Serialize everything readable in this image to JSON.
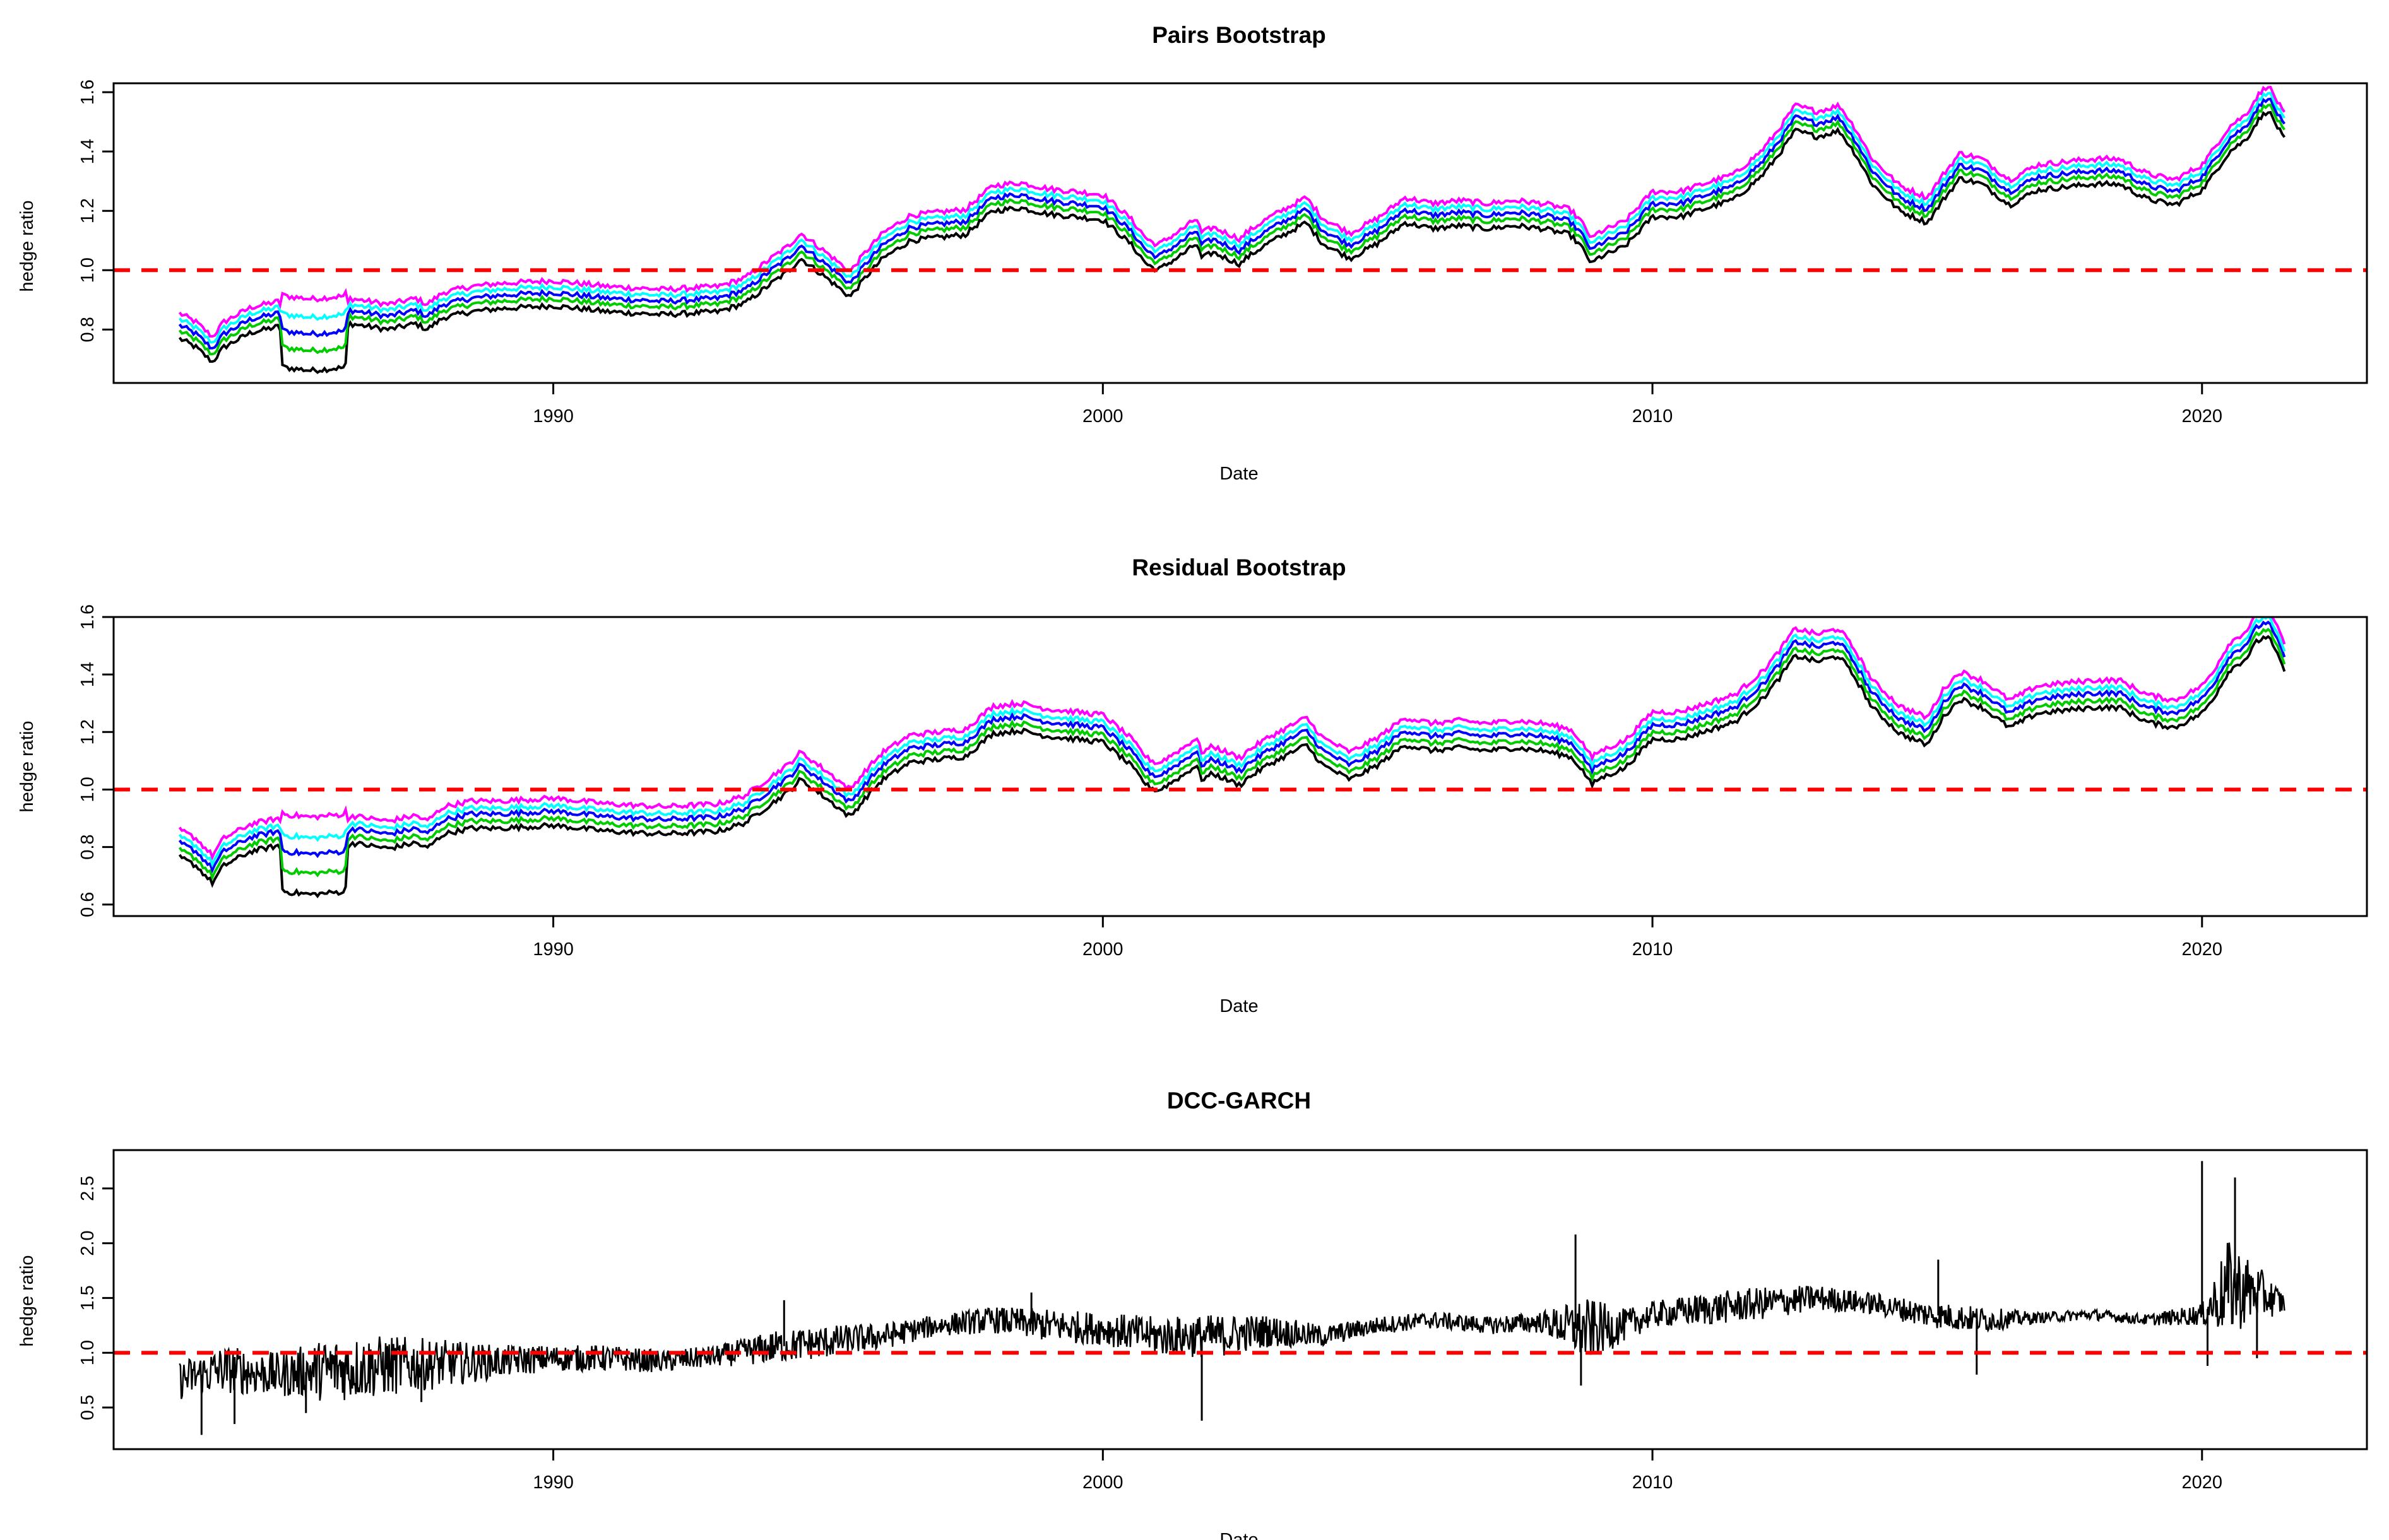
{
  "chart_data": [
    {
      "type": "line",
      "title": "Pairs Bootstrap",
      "xlabel": "Date",
      "ylabel": "hedge ratio",
      "xlim": [
        1982.0,
        2023.0
      ],
      "ylim": [
        0.62,
        1.63
      ],
      "xticks": [
        1990,
        2000,
        2010,
        2020
      ],
      "yticks": [
        0.8,
        1.0,
        1.2,
        1.4,
        1.6
      ],
      "reference_line": {
        "y": 1.0,
        "color": "#ff0000",
        "style": "dashed"
      },
      "series_names": [
        "black",
        "green",
        "blue",
        "cyan",
        "magenta"
      ],
      "series_colors": [
        "#000000",
        "#00cc00",
        "#0000ff",
        "#00ffff",
        "#ff00ff"
      ],
      "series_offsets": [
        -0.06,
        -0.035,
        -0.015,
        0.005,
        0.025
      ],
      "series_spread": [
        0.9,
        0.55,
        0.25,
        -0.05,
        -0.4
      ],
      "center_line": {
        "x": [
          1983.2,
          1983.5,
          1983.8,
          1984.0,
          1984.5,
          1985.0,
          1985.1,
          1985.6,
          1986.2,
          1986.3,
          1987.0,
          1987.5,
          1987.7,
          1988.0,
          1988.5,
          1989.0,
          1990.0,
          1991.0,
          1992.0,
          1993.0,
          1993.5,
          1994.0,
          1994.3,
          1994.5,
          1995.0,
          1995.4,
          1995.7,
          1996.0,
          1996.5,
          1997.0,
          1997.5,
          1998.0,
          1998.5,
          1999.0,
          1999.5,
          2000.0,
          2000.5,
          2000.8,
          2001.0,
          2001.5,
          2001.7,
          2001.8,
          2002.0,
          2002.5,
          2002.6,
          2003.0,
          2003.5,
          2003.7,
          2004.0,
          2004.5,
          2005.0,
          2005.5,
          2006.0,
          2006.5,
          2007.0,
          2007.5,
          2008.0,
          2008.5,
          2008.7,
          2008.9,
          2009.0,
          2009.5,
          2010.0,
          2010.5,
          2011.0,
          2011.5,
          2012.0,
          2012.3,
          2012.6,
          2013.0,
          2013.4,
          2013.7,
          2014.0,
          2014.5,
          2015.0,
          2015.3,
          2015.6,
          2016.0,
          2016.5,
          2017.0,
          2017.5,
          2018.0,
          2018.5,
          2019.0,
          2019.5,
          2020.0,
          2020.2,
          2020.5,
          2020.8,
          2021.0,
          2021.2,
          2021.5
        ],
        "y": [
          0.83,
          0.8,
          0.75,
          0.8,
          0.85,
          0.87,
          0.84,
          0.83,
          0.84,
          0.88,
          0.86,
          0.88,
          0.86,
          0.9,
          0.92,
          0.93,
          0.94,
          0.92,
          0.91,
          0.92,
          0.95,
          1.02,
          1.06,
          1.1,
          1.03,
          0.97,
          1.04,
          1.1,
          1.16,
          1.17,
          1.18,
          1.26,
          1.27,
          1.25,
          1.24,
          1.23,
          1.15,
          1.08,
          1.06,
          1.12,
          1.15,
          1.1,
          1.12,
          1.08,
          1.1,
          1.15,
          1.2,
          1.22,
          1.15,
          1.1,
          1.15,
          1.22,
          1.2,
          1.21,
          1.2,
          1.21,
          1.2,
          1.18,
          1.14,
          1.08,
          1.1,
          1.14,
          1.24,
          1.24,
          1.27,
          1.3,
          1.38,
          1.45,
          1.53,
          1.51,
          1.53,
          1.45,
          1.35,
          1.26,
          1.22,
          1.3,
          1.37,
          1.35,
          1.28,
          1.33,
          1.34,
          1.35,
          1.35,
          1.3,
          1.28,
          1.33,
          1.38,
          1.46,
          1.5,
          1.56,
          1.6,
          1.5
        ]
      }
    },
    {
      "type": "line",
      "title": "Residual Bootstrap",
      "xlabel": "Date",
      "ylabel": "hedge ratio",
      "xlim": [
        1982.0,
        2023.0
      ],
      "ylim": [
        0.56,
        1.6
      ],
      "xticks": [
        1990,
        2000,
        2010,
        2020
      ],
      "yticks": [
        0.6,
        0.8,
        1.0,
        1.2,
        1.4,
        1.6
      ],
      "reference_line": {
        "y": 1.0,
        "color": "#ff0000",
        "style": "dashed"
      },
      "series_names": [
        "black",
        "green",
        "blue",
        "cyan",
        "magenta"
      ],
      "series_colors": [
        "#000000",
        "#00cc00",
        "#0000ff",
        "#00ffff",
        "#ff00ff"
      ],
      "series_offsets": [
        -0.065,
        -0.04,
        -0.015,
        0.005,
        0.03
      ],
      "series_spread": [
        1.0,
        0.6,
        0.25,
        -0.05,
        -0.45
      ],
      "center_line": {
        "x": [
          1983.2,
          1983.5,
          1983.8,
          1984.0,
          1984.5,
          1985.0,
          1985.1,
          1985.6,
          1986.2,
          1986.3,
          1987.0,
          1987.5,
          1987.7,
          1988.0,
          1988.5,
          1989.0,
          1990.0,
          1991.0,
          1992.0,
          1993.0,
          1993.5,
          1994.0,
          1994.3,
          1994.5,
          1995.0,
          1995.4,
          1995.7,
          1996.0,
          1996.5,
          1997.0,
          1997.5,
          1998.0,
          1998.5,
          1999.0,
          1999.5,
          2000.0,
          2000.5,
          2000.8,
          2001.0,
          2001.5,
          2001.7,
          2001.8,
          2002.0,
          2002.5,
          2002.6,
          2003.0,
          2003.5,
          2003.7,
          2004.0,
          2004.5,
          2005.0,
          2005.5,
          2006.0,
          2006.5,
          2007.0,
          2007.5,
          2008.0,
          2008.5,
          2008.7,
          2008.9,
          2009.0,
          2009.5,
          2010.0,
          2010.5,
          2011.0,
          2011.5,
          2012.0,
          2012.3,
          2012.6,
          2013.0,
          2013.4,
          2013.7,
          2014.0,
          2014.5,
          2015.0,
          2015.3,
          2015.6,
          2016.0,
          2016.5,
          2017.0,
          2017.5,
          2018.0,
          2018.5,
          2019.0,
          2019.5,
          2020.0,
          2020.2,
          2020.5,
          2020.8,
          2021.0,
          2021.2,
          2021.5
        ],
        "y": [
          0.83,
          0.8,
          0.74,
          0.8,
          0.85,
          0.87,
          0.83,
          0.82,
          0.83,
          0.88,
          0.86,
          0.88,
          0.86,
          0.91,
          0.93,
          0.93,
          0.94,
          0.92,
          0.91,
          0.92,
          0.95,
          1.02,
          1.06,
          1.1,
          1.03,
          0.97,
          1.04,
          1.1,
          1.16,
          1.17,
          1.18,
          1.26,
          1.27,
          1.25,
          1.24,
          1.23,
          1.15,
          1.08,
          1.06,
          1.12,
          1.15,
          1.1,
          1.12,
          1.08,
          1.1,
          1.15,
          1.2,
          1.22,
          1.15,
          1.1,
          1.15,
          1.22,
          1.2,
          1.21,
          1.2,
          1.21,
          1.2,
          1.18,
          1.14,
          1.08,
          1.1,
          1.14,
          1.24,
          1.24,
          1.27,
          1.3,
          1.38,
          1.45,
          1.53,
          1.51,
          1.53,
          1.45,
          1.35,
          1.26,
          1.22,
          1.32,
          1.38,
          1.35,
          1.28,
          1.33,
          1.34,
          1.35,
          1.35,
          1.3,
          1.28,
          1.33,
          1.38,
          1.48,
          1.52,
          1.58,
          1.6,
          1.48
        ]
      }
    },
    {
      "type": "line",
      "title": "DCC-GARCH",
      "xlabel": "Date",
      "ylabel": "hedge ratio",
      "xlim": [
        1982.0,
        2023.0
      ],
      "ylim": [
        0.12,
        2.85
      ],
      "xticks": [
        1990,
        2000,
        2010,
        2020
      ],
      "yticks": [
        0.5,
        1.0,
        1.5,
        2.0,
        2.5
      ],
      "reference_line": {
        "y": 1.0,
        "color": "#ff0000",
        "style": "dashed"
      },
      "series_names": [
        "dcc"
      ],
      "series_colors": [
        "#000000"
      ],
      "center_line": {
        "x": [
          1983.2,
          1984.0,
          1985.0,
          1986.0,
          1987.0,
          1988.0,
          1989.0,
          1990.0,
          1991.0,
          1992.0,
          1993.0,
          1994.0,
          1995.0,
          1996.0,
          1997.0,
          1998.0,
          1999.0,
          2000.0,
          2001.0,
          2002.0,
          2003.0,
          2004.0,
          2005.0,
          2006.0,
          2007.0,
          2008.0,
          2008.8,
          2009.5,
          2010.0,
          2011.0,
          2012.0,
          2013.0,
          2014.0,
          2015.0,
          2016.0,
          2017.0,
          2018.0,
          2019.0,
          2020.0,
          2020.5,
          2021.0,
          2021.5
        ],
        "y": [
          0.75,
          0.85,
          0.8,
          0.85,
          0.88,
          0.9,
          0.92,
          0.95,
          0.95,
          0.92,
          0.97,
          1.05,
          1.1,
          1.15,
          1.25,
          1.3,
          1.25,
          1.22,
          1.15,
          1.15,
          1.2,
          1.15,
          1.25,
          1.3,
          1.25,
          1.28,
          1.2,
          1.25,
          1.35,
          1.4,
          1.45,
          1.5,
          1.45,
          1.35,
          1.3,
          1.32,
          1.35,
          1.3,
          1.35,
          1.6,
          1.55,
          1.45
        ]
      },
      "noise_amplitude": [
        0.18,
        0.22,
        0.2,
        0.3,
        0.28,
        0.22,
        0.15,
        0.12,
        0.12,
        0.1,
        0.1,
        0.15,
        0.15,
        0.12,
        0.1,
        0.12,
        0.15,
        0.15,
        0.18,
        0.2,
        0.15,
        0.1,
        0.08,
        0.08,
        0.08,
        0.1,
        0.3,
        0.15,
        0.12,
        0.15,
        0.15,
        0.12,
        0.1,
        0.12,
        0.12,
        0.05,
        0.05,
        0.05,
        0.1,
        0.45,
        0.25,
        0.1
      ],
      "spikes": [
        {
          "x": 1983.6,
          "y": 0.25
        },
        {
          "x": 1984.2,
          "y": 0.35
        },
        {
          "x": 1985.5,
          "y": 0.45
        },
        {
          "x": 1987.6,
          "y": 0.55
        },
        {
          "x": 1994.2,
          "y": 1.48
        },
        {
          "x": 1998.7,
          "y": 1.55
        },
        {
          "x": 2001.8,
          "y": 0.38
        },
        {
          "x": 2008.6,
          "y": 2.08
        },
        {
          "x": 2008.7,
          "y": 0.7
        },
        {
          "x": 2015.2,
          "y": 1.85
        },
        {
          "x": 2015.9,
          "y": 0.8
        },
        {
          "x": 2020.0,
          "y": 2.75
        },
        {
          "x": 2020.1,
          "y": 0.88
        },
        {
          "x": 2020.6,
          "y": 2.6
        },
        {
          "x": 2021.0,
          "y": 0.95
        }
      ]
    }
  ]
}
